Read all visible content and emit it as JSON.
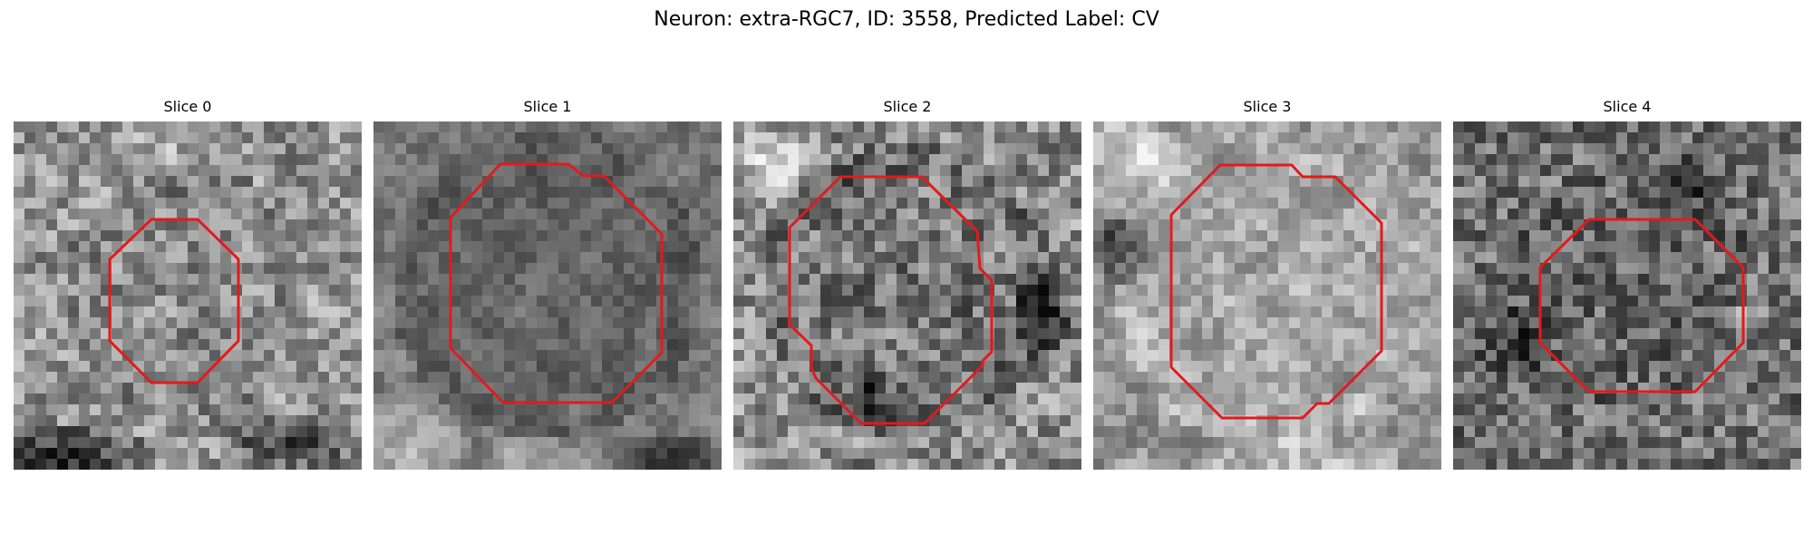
{
  "figure": {
    "title": "Neuron: extra-RGC7, ID: 3558, Predicted Label: CV"
  },
  "colors": {
    "contour": "#e31a1c",
    "background": "#ffffff",
    "image_colormap": "grayscale"
  },
  "slices": [
    {
      "title": "Slice 0",
      "texture": "mid-gray noisy patch, dark band along bottom edge, small octagonal contour"
    },
    {
      "title": "Slice 1",
      "texture": "darker blurred patch, large octagonal contour"
    },
    {
      "title": "Slice 2",
      "texture": "high-contrast noisy patch, octagonal contour"
    },
    {
      "title": "Slice 3",
      "texture": "lighter blotchy patch, large octagonal contour"
    },
    {
      "title": "Slice 4",
      "texture": "dark speckled patch, small octagonal contour"
    }
  ]
}
